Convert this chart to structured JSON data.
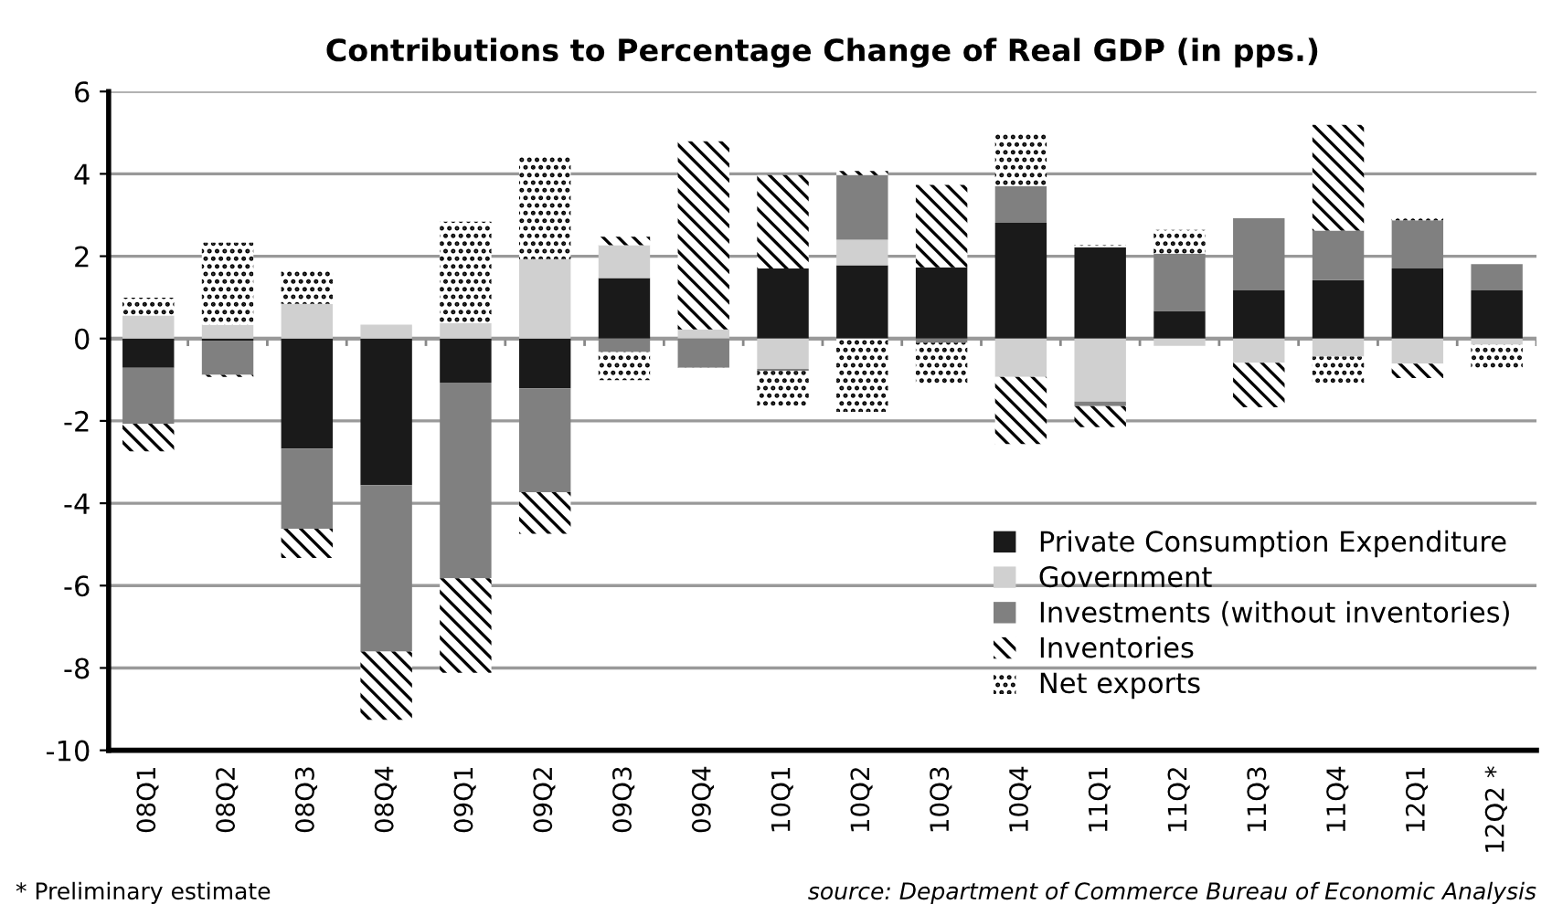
{
  "chart_data": {
    "type": "bar",
    "stacked": true,
    "title": "Contributions to Percentage Change of Real GDP (in pps.)",
    "categories": [
      "08Q1",
      "08Q2",
      "08Q3",
      "08Q4",
      "09Q1",
      "09Q2",
      "09Q3",
      "09Q4",
      "10Q1",
      "10Q2",
      "10Q3",
      "10Q4",
      "11Q1",
      "11Q2",
      "11Q3",
      "11Q4",
      "12Q1",
      "12Q2 *"
    ],
    "series": [
      {
        "name": "Private Consumption Expenditure",
        "color": "#1a1a1a",
        "values": [
          -0.71,
          -0.05,
          -2.67,
          -3.56,
          -1.07,
          -1.21,
          1.47,
          null,
          1.7,
          1.78,
          1.73,
          2.81,
          2.22,
          0.67,
          1.17,
          1.42,
          1.7,
          1.17
        ]
      },
      {
        "name": "Government",
        "color": "#d0d0d0",
        "values": [
          0.56,
          0.33,
          0.84,
          0.34,
          0.37,
          1.93,
          0.8,
          0.22,
          -0.74,
          0.62,
          null,
          -0.93,
          -1.53,
          -0.18,
          -0.59,
          -0.44,
          -0.61,
          -0.15
        ]
      },
      {
        "name": "Investments (without inventories)",
        "color": "#808080",
        "values": [
          -1.36,
          -0.83,
          -1.95,
          -4.04,
          -4.75,
          -2.52,
          -0.33,
          -0.71,
          -0.05,
          1.57,
          -0.1,
          0.89,
          -0.11,
          1.39,
          1.75,
          1.2,
          1.17,
          0.64
        ]
      },
      {
        "name": "Inventories",
        "color": "#000000",
        "values": [
          -0.67,
          -0.05,
          -0.71,
          -1.66,
          -2.3,
          -1.01,
          0.2,
          4.57,
          2.27,
          0.1,
          2.0,
          -1.63,
          -0.51,
          null,
          -1.08,
          2.57,
          -0.35,
          null
        ]
      },
      {
        "name": "Net exports",
        "color": "#000000",
        "values": [
          0.43,
          2.0,
          0.82,
          null,
          2.47,
          2.51,
          -0.68,
          -0.05,
          -0.84,
          -1.78,
          -1.0,
          1.26,
          0.05,
          0.58,
          0.05,
          -0.64,
          0.09,
          -0.56
        ]
      }
    ],
    "ylim": [
      -10,
      6
    ],
    "yticks": [
      -10,
      -8,
      -6,
      -4,
      -2,
      0,
      2,
      4,
      6
    ],
    "grid": "y",
    "legend": "bottom right",
    "annotations": [
      "* Preliminary estimate",
      "source: Department of Commerce Bureau of Economic Analysis"
    ]
  }
}
